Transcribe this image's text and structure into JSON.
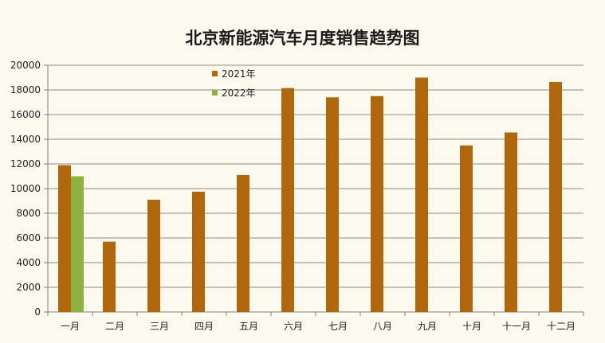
{
  "chart_data": {
    "type": "bar",
    "title": "北京新能源汽车月度销售趋势图",
    "categories": [
      "一月",
      "二月",
      "三月",
      "四月",
      "五月",
      "六月",
      "七月",
      "八月",
      "九月",
      "十月",
      "十一月",
      "十二月"
    ],
    "series": [
      {
        "name": "2021年",
        "color": "#b0660a",
        "values": [
          11900,
          5700,
          9100,
          9750,
          11100,
          18150,
          17400,
          17500,
          19000,
          13500,
          14550,
          18650
        ]
      },
      {
        "name": "2022年",
        "color": "#8db23f",
        "values": [
          11000,
          null,
          null,
          null,
          null,
          null,
          null,
          null,
          null,
          null,
          null,
          null
        ]
      }
    ],
    "yticks": [
      0,
      2000,
      4000,
      6000,
      8000,
      10000,
      12000,
      14000,
      16000,
      18000,
      20000
    ],
    "ylim": [
      0,
      20000
    ],
    "grid": true,
    "legend_position": "top-center",
    "xlabel": "",
    "ylabel": ""
  },
  "colors": {
    "background": "#fcf9ee",
    "grid": "#8c8c8c",
    "axis": "#808080"
  }
}
